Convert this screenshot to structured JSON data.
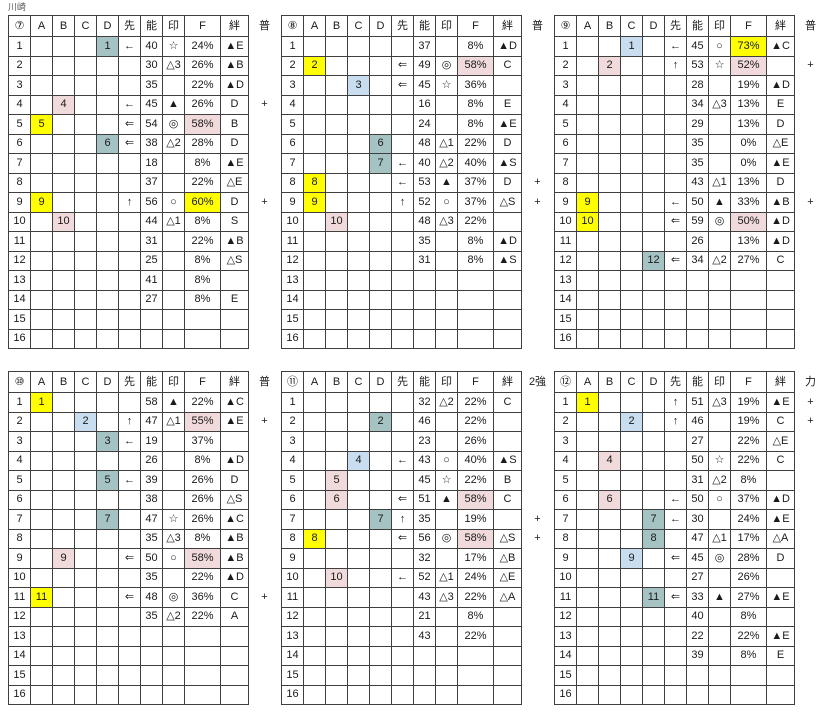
{
  "page_label": "川崎",
  "colors": {
    "yellow": "#ffff00",
    "pink": "#f0dadb",
    "teal": "#a5c3c3",
    "blue": "#c8def0"
  },
  "column_headers": [
    "A",
    "B",
    "C",
    "D",
    "先",
    "能",
    "印",
    "F",
    "絆"
  ],
  "row_count": 16,
  "tables": [
    {
      "id": "7",
      "number_label": "⑦",
      "category_label": "普",
      "rows": [
        {
          "r": 1,
          "col": "D",
          "v": "1",
          "bg": "teal",
          "sen": "←",
          "nou": "40",
          "mark": "☆",
          "f": "24%",
          "fbg": "",
          "kizuna": "▲E",
          "plus": false
        },
        {
          "r": 2,
          "nou": "30",
          "mark": "△3",
          "f": "26%",
          "kizuna": "▲B",
          "plus": false
        },
        {
          "r": 3,
          "nou": "35",
          "f": "22%",
          "kizuna": "▲D",
          "plus": false
        },
        {
          "r": 4,
          "col": "B",
          "v": "4",
          "bg": "pink",
          "sen": "←",
          "nou": "45",
          "mark": "▲",
          "f": "26%",
          "kizuna": "D",
          "plus": true
        },
        {
          "r": 5,
          "col": "A",
          "v": "5",
          "bg": "yellow",
          "sen": "⇐",
          "nou": "54",
          "mark": "◎",
          "f": "58%",
          "fbg": "pink",
          "kizuna": "B",
          "plus": false
        },
        {
          "r": 6,
          "col": "D",
          "v": "6",
          "bg": "teal",
          "sen": "⇐",
          "nou": "38",
          "mark": "△2",
          "f": "28%",
          "kizuna": "D",
          "plus": false
        },
        {
          "r": 7,
          "nou": "18",
          "f": "8%",
          "kizuna": "▲E",
          "plus": false
        },
        {
          "r": 8,
          "nou": "37",
          "f": "22%",
          "kizuna": "△E",
          "plus": false
        },
        {
          "r": 9,
          "col": "A",
          "v": "9",
          "bg": "yellow",
          "sen": "↑",
          "nou": "56",
          "mark": "○",
          "f": "60%",
          "fbg": "yellow",
          "kizuna": "D",
          "plus": true
        },
        {
          "r": 10,
          "col": "B",
          "v": "10",
          "bg": "pink",
          "nou": "44",
          "mark": "△1",
          "f": "8%",
          "kizuna": "S",
          "plus": false
        },
        {
          "r": 11,
          "nou": "31",
          "f": "22%",
          "kizuna": "▲B",
          "plus": false
        },
        {
          "r": 12,
          "nou": "25",
          "f": "8%",
          "kizuna": "△S",
          "plus": false
        },
        {
          "r": 13,
          "nou": "41",
          "f": "8%",
          "plus": false
        },
        {
          "r": 14,
          "nou": "27",
          "f": "8%",
          "kizuna": "E",
          "plus": false
        }
      ]
    },
    {
      "id": "8",
      "number_label": "⑧",
      "category_label": "普",
      "rows": [
        {
          "r": 1,
          "nou": "37",
          "f": "8%",
          "kizuna": "▲D",
          "plus": false
        },
        {
          "r": 2,
          "col": "A",
          "v": "2",
          "bg": "yellow",
          "sen": "⇐",
          "nou": "49",
          "mark": "◎",
          "f": "58%",
          "fbg": "pink",
          "kizuna": "C",
          "plus": false
        },
        {
          "r": 3,
          "col": "C",
          "v": "3",
          "bg": "blue",
          "sen": "⇐",
          "nou": "45",
          "mark": "☆",
          "f": "36%",
          "plus": false
        },
        {
          "r": 4,
          "nou": "16",
          "f": "8%",
          "kizuna": "E",
          "plus": false
        },
        {
          "r": 5,
          "nou": "24",
          "f": "8%",
          "kizuna": "▲E",
          "plus": false
        },
        {
          "r": 6,
          "col": "D",
          "v": "6",
          "bg": "teal",
          "nou": "48",
          "mark": "△1",
          "f": "22%",
          "kizuna": "D",
          "plus": false
        },
        {
          "r": 7,
          "col": "D",
          "v": "7",
          "bg": "teal",
          "sen": "←",
          "nou": "40",
          "mark": "△2",
          "f": "40%",
          "kizuna": "▲S",
          "plus": false
        },
        {
          "r": 8,
          "col": "A",
          "v": "8",
          "bg": "yellow",
          "sen": "←",
          "nou": "53",
          "mark": "▲",
          "f": "37%",
          "kizuna": "D",
          "plus": true
        },
        {
          "r": 9,
          "col": "A",
          "v": "9",
          "bg": "yellow",
          "sen": "↑",
          "nou": "52",
          "mark": "○",
          "f": "37%",
          "kizuna": "△S",
          "plus": true
        },
        {
          "r": 10,
          "col": "B",
          "v": "10",
          "bg": "pink",
          "nou": "48",
          "mark": "△3",
          "f": "22%",
          "plus": false
        },
        {
          "r": 11,
          "nou": "35",
          "f": "8%",
          "kizuna": "▲D",
          "plus": false
        },
        {
          "r": 12,
          "nou": "31",
          "f": "8%",
          "kizuna": "▲S",
          "plus": false
        }
      ]
    },
    {
      "id": "9",
      "number_label": "⑨",
      "category_label": "普",
      "rows": [
        {
          "r": 1,
          "col": "C",
          "v": "1",
          "bg": "blue",
          "sen": "←",
          "nou": "45",
          "mark": "○",
          "f": "73%",
          "fbg": "yellow",
          "kizuna": "▲C",
          "plus": false
        },
        {
          "r": 2,
          "col": "B",
          "v": "2",
          "bg": "pink",
          "sen": "↑",
          "nou": "53",
          "mark": "☆",
          "f": "52%",
          "fbg": "pink",
          "plus": true
        },
        {
          "r": 3,
          "nou": "28",
          "f": "19%",
          "kizuna": "▲D",
          "plus": false
        },
        {
          "r": 4,
          "nou": "34",
          "mark": "△3",
          "f": "13%",
          "kizuna": "E",
          "plus": false
        },
        {
          "r": 5,
          "nou": "29",
          "f": "13%",
          "kizuna": "D",
          "plus": false
        },
        {
          "r": 6,
          "nou": "35",
          "f": "0%",
          "kizuna": "△E",
          "plus": false
        },
        {
          "r": 7,
          "nou": "35",
          "f": "0%",
          "kizuna": "▲E",
          "plus": false
        },
        {
          "r": 8,
          "nou": "43",
          "mark": "△1",
          "f": "13%",
          "kizuna": "D",
          "plus": false
        },
        {
          "r": 9,
          "col": "A",
          "v": "9",
          "bg": "yellow",
          "sen": "←",
          "nou": "50",
          "mark": "▲",
          "f": "33%",
          "kizuna": "▲B",
          "plus": true
        },
        {
          "r": 10,
          "col": "A",
          "v": "10",
          "bg": "yellow",
          "sen": "⇐",
          "nou": "59",
          "mark": "◎",
          "f": "50%",
          "fbg": "pink",
          "kizuna": "▲D",
          "plus": false
        },
        {
          "r": 11,
          "nou": "26",
          "f": "13%",
          "kizuna": "▲D",
          "plus": false
        },
        {
          "r": 12,
          "col": "D",
          "v": "12",
          "bg": "teal",
          "sen": "⇐",
          "nou": "34",
          "mark": "△2",
          "f": "27%",
          "kizuna": "C",
          "plus": false
        }
      ]
    },
    {
      "id": "10",
      "number_label": "⑩",
      "category_label": "普",
      "rows": [
        {
          "r": 1,
          "col": "A",
          "v": "1",
          "bg": "yellow",
          "nou": "58",
          "mark": "▲",
          "f": "22%",
          "kizuna": "▲C",
          "plus": false
        },
        {
          "r": 2,
          "col": "C",
          "v": "2",
          "bg": "blue",
          "sen": "↑",
          "nou": "47",
          "mark": "△1",
          "f": "55%",
          "fbg": "pink",
          "kizuna": "▲E",
          "plus": true
        },
        {
          "r": 3,
          "col": "D",
          "v": "3",
          "bg": "teal",
          "sen": "←",
          "nou": "19",
          "f": "37%",
          "plus": false
        },
        {
          "r": 4,
          "nou": "26",
          "f": "8%",
          "kizuna": "▲D",
          "plus": false
        },
        {
          "r": 5,
          "col": "D",
          "v": "5",
          "bg": "teal",
          "sen": "←",
          "nou": "39",
          "f": "26%",
          "kizuna": "D",
          "plus": false
        },
        {
          "r": 6,
          "nou": "38",
          "f": "26%",
          "kizuna": "△S",
          "plus": false
        },
        {
          "r": 7,
          "col": "D",
          "v": "7",
          "bg": "teal",
          "nou": "47",
          "mark": "☆",
          "f": "26%",
          "kizuna": "▲C",
          "plus": false
        },
        {
          "r": 8,
          "nou": "35",
          "mark": "△3",
          "f": "8%",
          "kizuna": "▲B",
          "plus": false
        },
        {
          "r": 9,
          "col": "B",
          "v": "9",
          "bg": "pink",
          "sen": "⇐",
          "nou": "50",
          "mark": "○",
          "f": "58%",
          "fbg": "pink",
          "kizuna": "▲B",
          "plus": false
        },
        {
          "r": 10,
          "nou": "35",
          "f": "22%",
          "kizuna": "▲D",
          "plus": false
        },
        {
          "r": 11,
          "col": "A",
          "v": "11",
          "bg": "yellow",
          "sen": "⇐",
          "nou": "48",
          "mark": "◎",
          "f": "36%",
          "kizuna": "C",
          "plus": true
        },
        {
          "r": 12,
          "nou": "35",
          "mark": "△2",
          "f": "22%",
          "kizuna": "A",
          "plus": false
        }
      ]
    },
    {
      "id": "11",
      "number_label": "⑪",
      "category_label": "2強",
      "rows": [
        {
          "r": 1,
          "nou": "32",
          "mark": "△2",
          "f": "22%",
          "kizuna": "C",
          "plus": false
        },
        {
          "r": 2,
          "col": "D",
          "v": "2",
          "bg": "teal",
          "nou": "46",
          "f": "22%",
          "plus": false
        },
        {
          "r": 3,
          "nou": "23",
          "f": "26%",
          "plus": false
        },
        {
          "r": 4,
          "col": "C",
          "v": "4",
          "bg": "blue",
          "sen": "←",
          "nou": "43",
          "mark": "○",
          "f": "40%",
          "kizuna": "▲S",
          "plus": false
        },
        {
          "r": 5,
          "col": "B",
          "v": "5",
          "bg": "pink",
          "nou": "45",
          "mark": "☆",
          "f": "22%",
          "kizuna": "B",
          "plus": false
        },
        {
          "r": 6,
          "col": "B",
          "v": "6",
          "bg": "pink",
          "sen": "⇐",
          "nou": "51",
          "mark": "▲",
          "f": "58%",
          "fbg": "pink",
          "kizuna": "C",
          "plus": false
        },
        {
          "r": 7,
          "col": "D",
          "v": "7",
          "bg": "teal",
          "sen": "↑",
          "nou": "35",
          "f": "19%",
          "plus": true
        },
        {
          "r": 8,
          "col": "A",
          "v": "8",
          "bg": "yellow",
          "sen": "⇐",
          "nou": "56",
          "mark": "◎",
          "f": "58%",
          "fbg": "pink",
          "kizuna": "△S",
          "plus": true
        },
        {
          "r": 9,
          "nou": "32",
          "f": "17%",
          "kizuna": "△B",
          "plus": false
        },
        {
          "r": 10,
          "col": "B",
          "v": "10",
          "bg": "pink",
          "sen": "←",
          "nou": "52",
          "mark": "△1",
          "f": "24%",
          "kizuna": "△E",
          "plus": false
        },
        {
          "r": 11,
          "nou": "43",
          "mark": "△3",
          "f": "22%",
          "kizuna": "△A",
          "plus": false
        },
        {
          "r": 12,
          "nou": "21",
          "f": "8%",
          "plus": false
        },
        {
          "r": 13,
          "nou": "43",
          "f": "22%",
          "plus": false
        }
      ]
    },
    {
      "id": "12",
      "number_label": "⑫",
      "category_label": "力",
      "rows": [
        {
          "r": 1,
          "col": "A",
          "v": "1",
          "bg": "yellow",
          "sen": "↑",
          "nou": "51",
          "mark": "△3",
          "f": "19%",
          "kizuna": "▲E",
          "plus": true
        },
        {
          "r": 2,
          "col": "C",
          "v": "2",
          "bg": "blue",
          "sen": "↑",
          "nou": "46",
          "f": "19%",
          "kizuna": "C",
          "plus": true
        },
        {
          "r": 3,
          "nou": "27",
          "f": "22%",
          "kizuna": "△E",
          "plus": false
        },
        {
          "r": 4,
          "col": "B",
          "v": "4",
          "bg": "pink",
          "nou": "50",
          "mark": "☆",
          "f": "22%",
          "kizuna": "C",
          "plus": false
        },
        {
          "r": 5,
          "nou": "31",
          "mark": "△2",
          "f": "8%",
          "plus": false
        },
        {
          "r": 6,
          "col": "B",
          "v": "6",
          "bg": "pink",
          "sen": "←",
          "nou": "50",
          "mark": "○",
          "f": "37%",
          "kizuna": "▲D",
          "plus": false
        },
        {
          "r": 7,
          "col": "D",
          "v": "7",
          "bg": "teal",
          "sen": "←",
          "nou": "30",
          "f": "24%",
          "kizuna": "▲E",
          "plus": false
        },
        {
          "r": 8,
          "col": "D",
          "v": "8",
          "bg": "teal",
          "nou": "47",
          "mark": "△1",
          "f": "17%",
          "kizuna": "△A",
          "plus": false
        },
        {
          "r": 9,
          "col": "C",
          "v": "9",
          "bg": "blue",
          "sen": "⇐",
          "nou": "45",
          "mark": "◎",
          "f": "28%",
          "kizuna": "D",
          "plus": false
        },
        {
          "r": 10,
          "nou": "27",
          "f": "26%",
          "plus": false
        },
        {
          "r": 11,
          "col": "D",
          "v": "11",
          "bg": "teal",
          "sen": "⇐",
          "nou": "33",
          "mark": "▲",
          "f": "27%",
          "kizuna": "▲E",
          "plus": false
        },
        {
          "r": 12,
          "nou": "40",
          "f": "8%",
          "plus": false
        },
        {
          "r": 13,
          "nou": "22",
          "f": "22%",
          "kizuna": "▲E",
          "plus": false
        },
        {
          "r": 14,
          "nou": "39",
          "f": "8%",
          "kizuna": "E",
          "plus": false
        }
      ]
    }
  ]
}
